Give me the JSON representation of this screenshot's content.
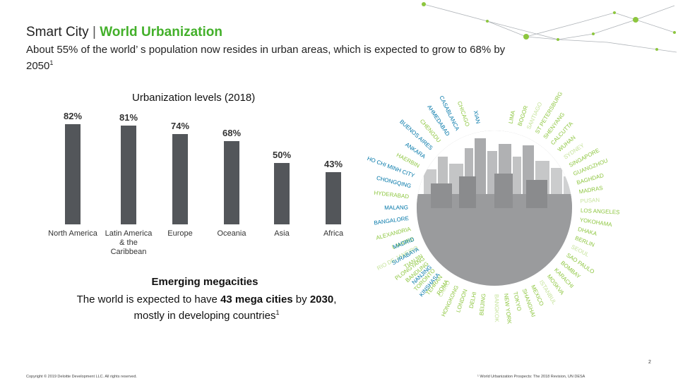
{
  "header": {
    "title_prefix": "Smart City",
    "title_sep": "|",
    "title_accent": "World Urbanization",
    "subtitle_a": "About 55% of the world",
    "subtitle_b": "’ s population now resides in urban areas, which is expected to grow to 68% by 2050",
    "subtitle_sup": "1"
  },
  "chart_data": {
    "type": "bar",
    "title": "Urbanization levels (2018)",
    "categories": [
      "North America",
      "Latin America & the Caribbean",
      "Europe",
      "Oceania",
      "Asia",
      "Africa"
    ],
    "values": [
      82,
      81,
      74,
      68,
      50,
      43
    ],
    "value_labels": [
      "82%",
      "81%",
      "74%",
      "68%",
      "50%",
      "43%"
    ],
    "ylim": [
      0,
      100
    ],
    "ylabel": "",
    "xlabel": ""
  },
  "caption": {
    "heading": "Emerging megacities",
    "text_a": "The world is expected to have ",
    "text_bold": "43 mega cities",
    "text_b": " by ",
    "text_bold2": "2030",
    "text_c": ", mostly in developing countries",
    "sup": "1"
  },
  "cities": {
    "green": [
      "LIMA",
      "BOGOR",
      "SANTIAGO",
      "ST PETERSBURG",
      "SHENYANG",
      "CALCUTTA",
      "WUHAN",
      "SYDNEY",
      "SINGAPORE",
      "GUANGZHOU",
      "BAGHDAD",
      "MADRAS",
      "PUSAN",
      "LOS ANGELES",
      "YOKOHAMA",
      "DHAKA",
      "BERLIN",
      "SEOUL",
      "SAO PAULO",
      "BOMBAY",
      "KARACHI",
      "MOSKVA",
      "ISTANBUL",
      "MEXICO",
      "SHANGHAI",
      "TOKYO",
      "NEW YORK",
      "BANGKOK",
      "BEIJING",
      "DELHI",
      "LONDON",
      "HONGKONG",
      "CAIRO",
      "TEHRAN",
      "TORONTO",
      "BANDUNG",
      "TIANJIN",
      "RIO DE JANEIRO",
      "LAHORE"
    ],
    "left": [
      "XIAN",
      "CHICAGO",
      "CASABLANCA",
      "AHMEDABAD",
      "CHENGDU",
      "BUENOS AIRES",
      "ANKARA",
      "HAERBIN",
      "HO CHI MINH CITY",
      "CHONGQING",
      "HYDERABAD",
      "MALANG",
      "BANGALORE",
      "ALEXANDRIA",
      "MADRID",
      "SURABAYA",
      "PLONGYANG",
      "NANJING",
      "KINSHASA",
      "ROMA"
    ]
  },
  "footer": {
    "page_number": "2",
    "copyright": "Copyright © 2019 Deloitte Development LLC. All rights reserved.",
    "footnote": "¹ World Urbanization Prospects: The 2018 Revision, UN DESA"
  },
  "colors": {
    "accent": "#43b02a",
    "bar": "#53565a",
    "city_green": "#8dc63f",
    "city_blue": "#0076a8"
  }
}
